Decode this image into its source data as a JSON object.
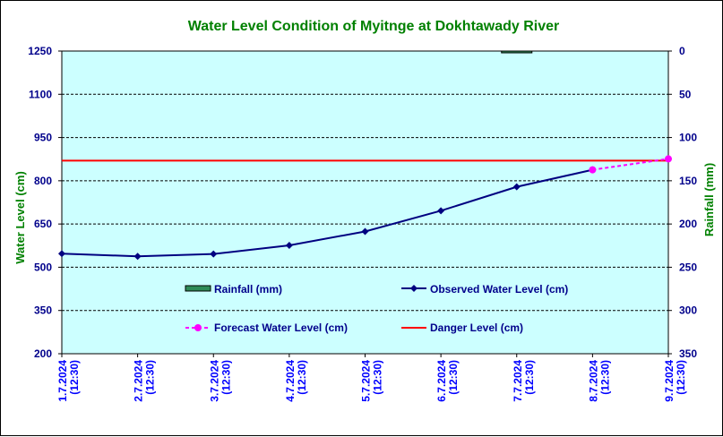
{
  "chart_data": {
    "type": "line",
    "title": "Water Level Condition of Myitnge at Dokhtawady River",
    "ylabel_left": "Water Level (cm)",
    "ylabel_right": "Rainfall (mm)",
    "y_left_range": [
      200,
      1250
    ],
    "y_left_ticks": [
      "1250",
      "1100",
      "950",
      "800",
      "650",
      "500",
      "350",
      "200"
    ],
    "y_right_range": [
      0,
      350
    ],
    "y_right_ticks": [
      "0",
      "50",
      "100",
      "150",
      "200",
      "250",
      "300",
      "350"
    ],
    "categories": [
      [
        "1.7.2024",
        "(12:30)"
      ],
      [
        "2.7.2024",
        "(12:30)"
      ],
      [
        "3.7.2024",
        "(12:30)"
      ],
      [
        "4.7.2024",
        "(12:30)"
      ],
      [
        "5.7.2024",
        "(12:30)"
      ],
      [
        "6.7.2024",
        "(12:30)"
      ],
      [
        "7.7.2024",
        "(12:30)"
      ],
      [
        "8.7.2024",
        "(12:30)"
      ],
      [
        "9.7.2024",
        "(12:30)"
      ]
    ],
    "series": [
      {
        "name": "Rainfall (mm)",
        "kind": "bar",
        "axis": "right",
        "color": "#2e8b57",
        "values": [
          0,
          0,
          0,
          0,
          0,
          0,
          1,
          0,
          0
        ]
      },
      {
        "name": "Observed Water Level (cm)",
        "kind": "line",
        "color": "#000080",
        "values": [
          547,
          538,
          546,
          576,
          624,
          696,
          779,
          838,
          null
        ]
      },
      {
        "name": "Forecast Water Level (cm)",
        "kind": "dashed-line",
        "color": "#ff00ff",
        "values": [
          null,
          null,
          null,
          null,
          null,
          null,
          null,
          838,
          876
        ]
      },
      {
        "name": "Danger Level (cm)",
        "kind": "hline",
        "color": "#ff0000",
        "value": 870
      }
    ],
    "grid": "horizontal-dashed",
    "plot_background": "#ccffff"
  }
}
